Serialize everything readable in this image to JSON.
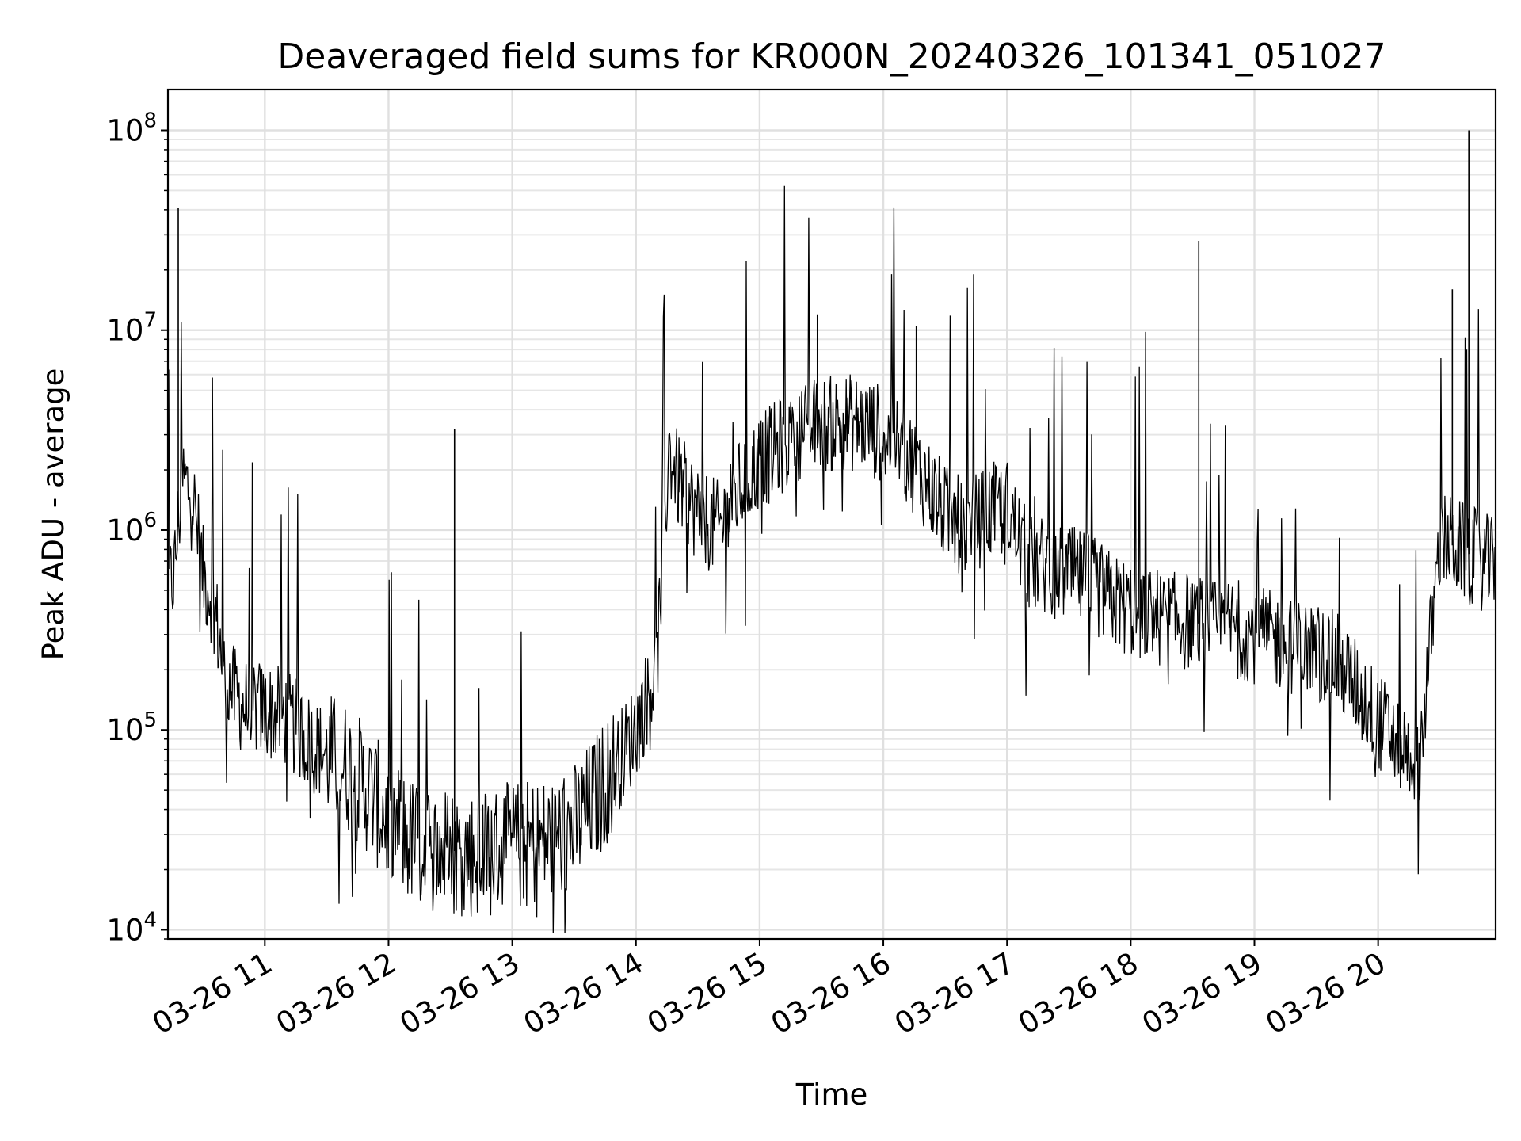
{
  "chart_data": {
    "type": "line",
    "title": "Deaveraged field sums for KR000N_20240326_101341_051027",
    "xlabel": "Time",
    "ylabel": "Peak ADU - average",
    "yscale": "log",
    "ylim": [
      9000,
      160000000
    ],
    "xlim": [
      "03-26 10:13",
      "03-26 20:57"
    ],
    "grid": true,
    "legend": "none",
    "line_color": "#000000",
    "x_ticks": [
      "03-26 11",
      "03-26 12",
      "03-26 13",
      "03-26 14",
      "03-26 15",
      "03-26 16",
      "03-26 17",
      "03-26 18",
      "03-26 19",
      "03-26 20"
    ],
    "y_ticks": [
      {
        "base": "10",
        "exp": "4",
        "value": 10000
      },
      {
        "base": "10",
        "exp": "5",
        "value": 100000
      },
      {
        "base": "10",
        "exp": "6",
        "value": 1000000
      },
      {
        "base": "10",
        "exp": "7",
        "value": 10000000
      },
      {
        "base": "10",
        "exp": "8",
        "value": 100000000
      }
    ],
    "series": [
      {
        "x": [
          "03-26 10:13",
          "03-26 10:16",
          "03-26 10:20",
          "03-26 10:25",
          "03-26 10:30",
          "03-26 10:35",
          "03-26 10:40",
          "03-26 10:45",
          "03-26 10:50",
          "03-26 10:55",
          "03-26 11:00",
          "03-26 11:10",
          "03-26 11:20",
          "03-26 11:30",
          "03-26 11:40",
          "03-26 11:50",
          "03-26 12:00",
          "03-26 12:10",
          "03-26 12:20",
          "03-26 12:30",
          "03-26 12:40",
          "03-26 12:50",
          "03-26 13:00",
          "03-26 13:10",
          "03-26 13:20",
          "03-26 13:30",
          "03-26 13:40",
          "03-26 13:50",
          "03-26 14:00",
          "03-26 14:10",
          "03-26 14:16",
          "03-26 14:20",
          "03-26 14:30",
          "03-26 14:40",
          "03-26 14:50",
          "03-26 15:00",
          "03-26 15:10",
          "03-26 15:20",
          "03-26 15:30",
          "03-26 15:40",
          "03-26 15:50",
          "03-26 16:00",
          "03-26 16:10",
          "03-26 16:20",
          "03-26 16:30",
          "03-26 16:40",
          "03-26 16:50",
          "03-26 17:00",
          "03-26 17:10",
          "03-26 17:20",
          "03-26 17:30",
          "03-26 17:40",
          "03-26 17:50",
          "03-26 18:00",
          "03-26 18:10",
          "03-26 18:20",
          "03-26 18:30",
          "03-26 18:40",
          "03-26 18:50",
          "03-26 19:00",
          "03-26 19:10",
          "03-26 19:20",
          "03-26 19:30",
          "03-26 19:40",
          "03-26 19:50",
          "03-26 20:00",
          "03-26 20:10",
          "03-26 20:20",
          "03-26 20:30",
          "03-26 20:40",
          "03-26 20:50",
          "03-26 20:57"
        ],
        "values": [
          500000,
          600000,
          1800000,
          1500000,
          600000,
          450000,
          200000,
          150000,
          130000,
          130000,
          125000,
          115000,
          90000,
          75000,
          65000,
          50000,
          35000,
          28000,
          25000,
          25000,
          24000,
          25000,
          26000,
          27000,
          28000,
          32000,
          45000,
          65000,
          100000,
          200000,
          2500000,
          1800000,
          1200000,
          1000000,
          1600000,
          2200000,
          2600000,
          3200000,
          3300000,
          3500000,
          3400000,
          3000000,
          2500000,
          1800000,
          1200000,
          1000000,
          1200000,
          1300000,
          700000,
          650000,
          600000,
          550000,
          450000,
          400000,
          380000,
          350000,
          350000,
          320000,
          330000,
          300000,
          280000,
          260000,
          250000,
          220000,
          160000,
          110000,
          85000,
          70000,
          900000,
          800000,
          700000,
          650000
        ],
        "spikes": [
          {
            "x": "03-26 10:18",
            "y": 41000000
          },
          {
            "x": "03-26 12:32",
            "y": 3200000
          },
          {
            "x": "03-26 15:28",
            "y": 12000000
          },
          {
            "x": "03-26 16:16",
            "y": 10500000
          },
          {
            "x": "03-26 18:33",
            "y": 28000000
          },
          {
            "x": "03-26 20:36",
            "y": 16000000
          },
          {
            "x": "03-26 20:44",
            "y": 100000000
          }
        ]
      }
    ]
  }
}
